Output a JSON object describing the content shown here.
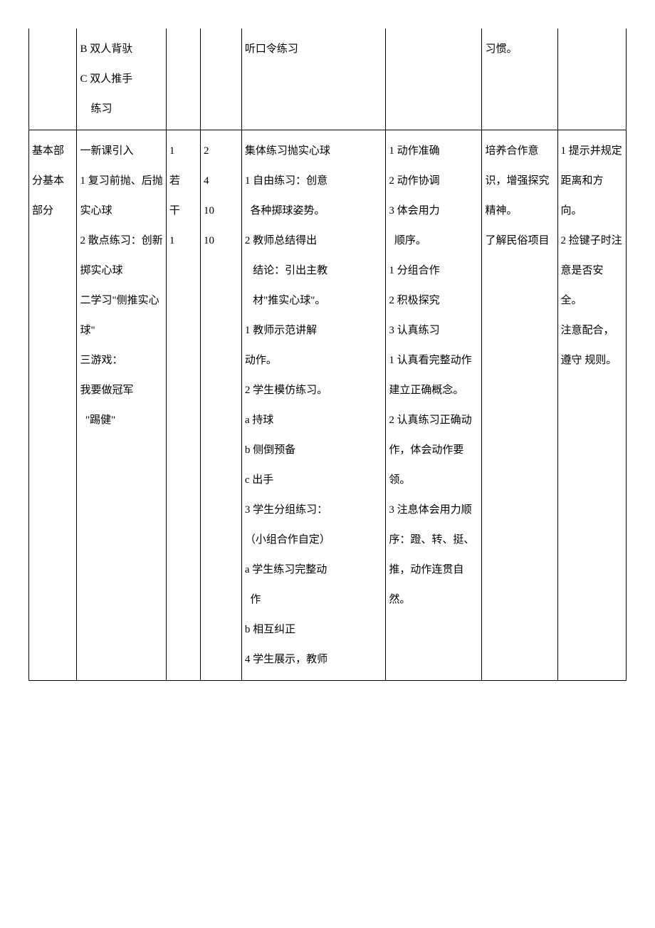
{
  "table": {
    "font_family": "SimSun",
    "font_size": 15,
    "line_height": 2.8,
    "text_color": "#000000",
    "border_color": "#000000",
    "background_color": "#ffffff",
    "column_widths_percent": [
      7,
      13,
      5,
      6,
      21,
      14,
      11,
      10
    ],
    "rows": [
      {
        "cells": [
          "",
          "B 双人背驮\nC 双人推手\n    练习",
          "",
          "",
          "听口令练习",
          "",
          "习惯。",
          ""
        ],
        "no_top_border": true
      },
      {
        "cells": [
          "基本部分基本部分",
          "一新课引入\n1 复习前抛、后抛实心球\n2 散点练习：创新掷实心球\n二学习\"侧推实心球\"\n三游戏：\n我要做冠军\n  \"踢健\"",
          "1\n若\n干\n1",
          "2\n4\n10\n10",
          "集体练习抛实心球\n1 自由练习：创意\n  各种掷球姿势。\n2 教师总结得出\n   结论：引出主教\n   材\"推实心球\"。\n1 教师示范讲解\n动作。\n2 学生模仿练习。\na 持球\nb 侧倒预备\nc 出手\n3 学生分组练习：\n（小组合作自定）\na 学生练习完整动\n  作\nb 相互纠正\n4 学生展示，教师",
          "1 动作准确\n2 动作协调\n3 体会用力\n  顺序。\n1 分组合作\n2 积极探究\n3 认真练习\n1 认真看完整动作建立正确概念。\n2 认真练习正确动作，体会动作要领。\n3 注息体会用力顺序：蹬、转、挺、推，动作连贯自然。",
          "培养合作意识，增强探究精神。\n了解民俗项目",
          "1 提示并规定距离和方向。\n2 捡键子时注意是否安全。\n注意配合，遵守 规则。"
        ],
        "no_top_border": false
      }
    ]
  }
}
